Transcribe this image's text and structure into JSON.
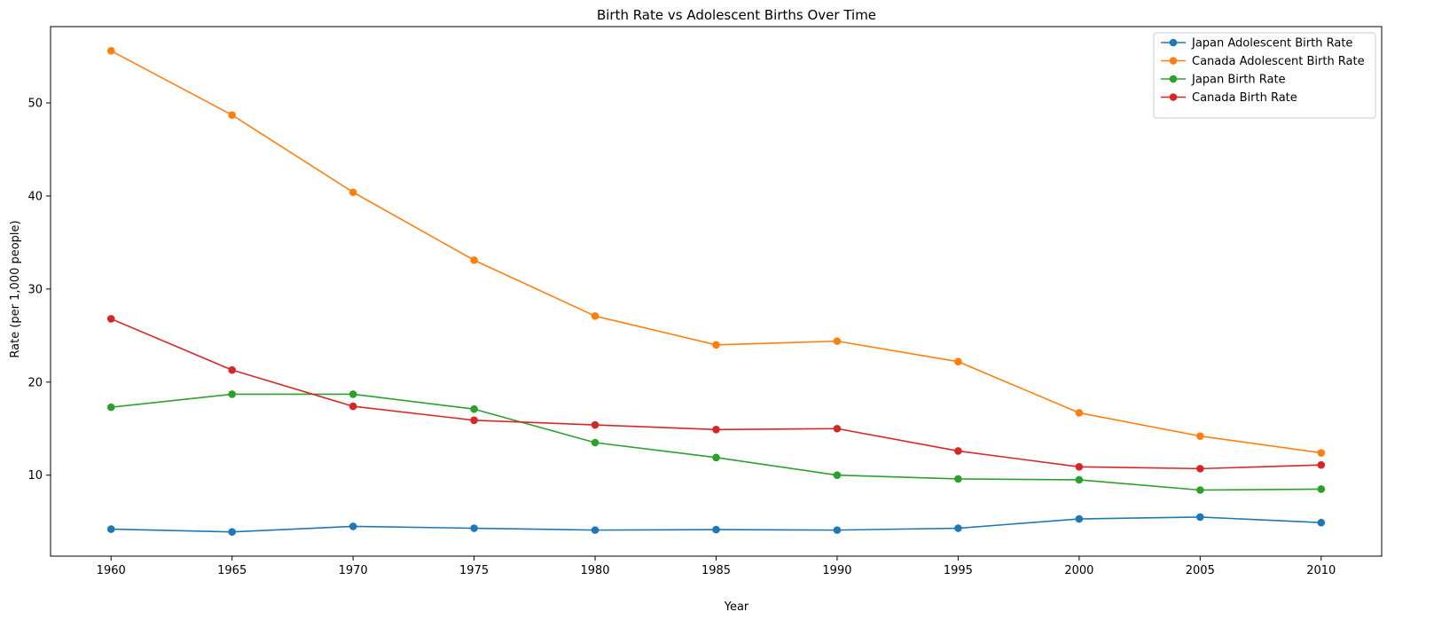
{
  "chart_data": {
    "type": "line",
    "title": "Birth Rate vs Adolescent Births Over Time",
    "xlabel": "Year",
    "ylabel": "Rate (per 1,000 people)",
    "x": [
      1960,
      1965,
      1970,
      1975,
      1980,
      1985,
      1990,
      1995,
      2000,
      2005,
      2010
    ],
    "xlim": [
      1957.5,
      2012.5
    ],
    "ylim": [
      1.3,
      58.2
    ],
    "yticks": [
      10,
      20,
      30,
      40,
      50
    ],
    "grid": false,
    "legend_position": "top-right",
    "series": [
      {
        "name": "Japan Adolescent Birth Rate",
        "color": "#1f77b4",
        "values": [
          4.2,
          3.9,
          4.5,
          4.3,
          4.1,
          4.15,
          4.1,
          4.3,
          5.3,
          5.5,
          4.9
        ]
      },
      {
        "name": "Canada Adolescent Birth Rate",
        "color": "#ff7f0e",
        "values": [
          55.6,
          48.7,
          40.4,
          33.1,
          27.1,
          24.0,
          24.4,
          22.2,
          16.7,
          14.2,
          12.4
        ]
      },
      {
        "name": "Japan Birth Rate",
        "color": "#2ca02c",
        "values": [
          17.3,
          18.7,
          18.7,
          17.1,
          13.5,
          11.9,
          10.0,
          9.6,
          9.5,
          8.4,
          8.5
        ]
      },
      {
        "name": "Canada Birth Rate",
        "color": "#d62728",
        "values": [
          26.8,
          21.3,
          17.4,
          15.9,
          15.4,
          14.9,
          15.0,
          12.6,
          10.9,
          10.7,
          11.1
        ]
      }
    ]
  }
}
